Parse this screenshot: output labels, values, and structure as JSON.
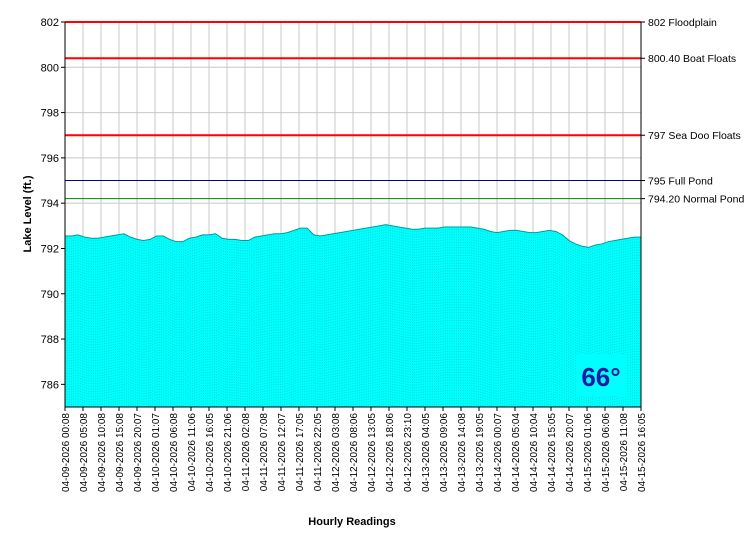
{
  "chart_data": {
    "type": "area",
    "title": "",
    "xlabel": "Hourly Readings",
    "ylabel": "Lake Level (ft.)",
    "ylim": [
      785,
      802
    ],
    "y_ticks": [
      786,
      788,
      790,
      792,
      794,
      796,
      798,
      800,
      802
    ],
    "grid": true,
    "fill_color": "#00ffff",
    "x_tick_labels": [
      "04-09-2026 00:08",
      "04-09-2026 05:08",
      "04-09-2026 10:08",
      "04-09-2026 15:08",
      "04-09-2026 20:07",
      "04-10-2026 01:07",
      "04-10-2026 06:08",
      "04-10-2026 11:06",
      "04-10-2026 16:05",
      "04-10-2026 21:06",
      "04-11-2026 02:08",
      "04-11-2026 07:08",
      "04-11-2026 12:07",
      "04-11-2026 17:05",
      "04-11-2026 22:05",
      "04-12-2026 03:08",
      "04-12-2026 08:06",
      "04-12-2026 13:05",
      "04-12-2026 18:06",
      "04-12-2026 23:10",
      "04-13-2026 04:05",
      "04-13-2026 09:06",
      "04-13-2026 14:08",
      "04-13-2026 19:05",
      "04-14-2026 00:07",
      "04-14-2026 05:04",
      "04-14-2026 10:04",
      "04-14-2026 15:05",
      "04-14-2026 20:07",
      "04-15-2026 01:06",
      "04-15-2026 06:06",
      "04-15-2026 11:08",
      "04-15-2026 16:05"
    ],
    "series": [
      {
        "values": [
          792.55,
          792.55,
          792.6,
          792.5,
          792.45,
          792.45,
          792.5,
          792.55,
          792.6,
          792.65,
          792.5,
          792.4,
          792.35,
          792.4,
          792.55,
          792.55,
          792.4,
          792.3,
          792.3,
          792.45,
          792.5,
          792.6,
          792.6,
          792.65,
          792.45,
          792.4,
          792.4,
          792.35,
          792.35,
          792.5,
          792.55,
          792.6,
          792.65,
          792.65,
          792.7,
          792.8,
          792.9,
          792.9,
          792.6,
          792.55,
          792.6,
          792.65,
          792.7,
          792.75,
          792.8,
          792.85,
          792.9,
          792.95,
          793.0,
          793.05,
          793.0,
          792.95,
          792.9,
          792.85,
          792.85,
          792.9,
          792.9,
          792.9,
          792.95,
          792.95,
          792.95,
          792.95,
          792.95,
          792.9,
          792.85,
          792.75,
          792.7,
          792.75,
          792.8,
          792.8,
          792.75,
          792.7,
          792.7,
          792.75,
          792.8,
          792.75,
          792.6,
          792.35,
          792.2,
          792.1,
          792.05,
          792.15,
          792.2,
          792.3,
          792.35,
          792.4,
          792.45,
          792.5,
          792.5
        ]
      }
    ],
    "reference_lines": [
      {
        "value": 802,
        "label": "802 Floodplain",
        "color": "#ff0000"
      },
      {
        "value": 800.4,
        "label": "800.40 Boat Floats",
        "color": "#ff0000"
      },
      {
        "value": 797,
        "label": "797 Sea Doo Floats",
        "color": "#ff0000"
      },
      {
        "value": 795,
        "label": "795 Full Pond",
        "color": "#000080"
      },
      {
        "value": 794.2,
        "label": "794.20 Normal Pond",
        "color": "#008000"
      }
    ]
  },
  "badge": {
    "temperature": "66°"
  }
}
